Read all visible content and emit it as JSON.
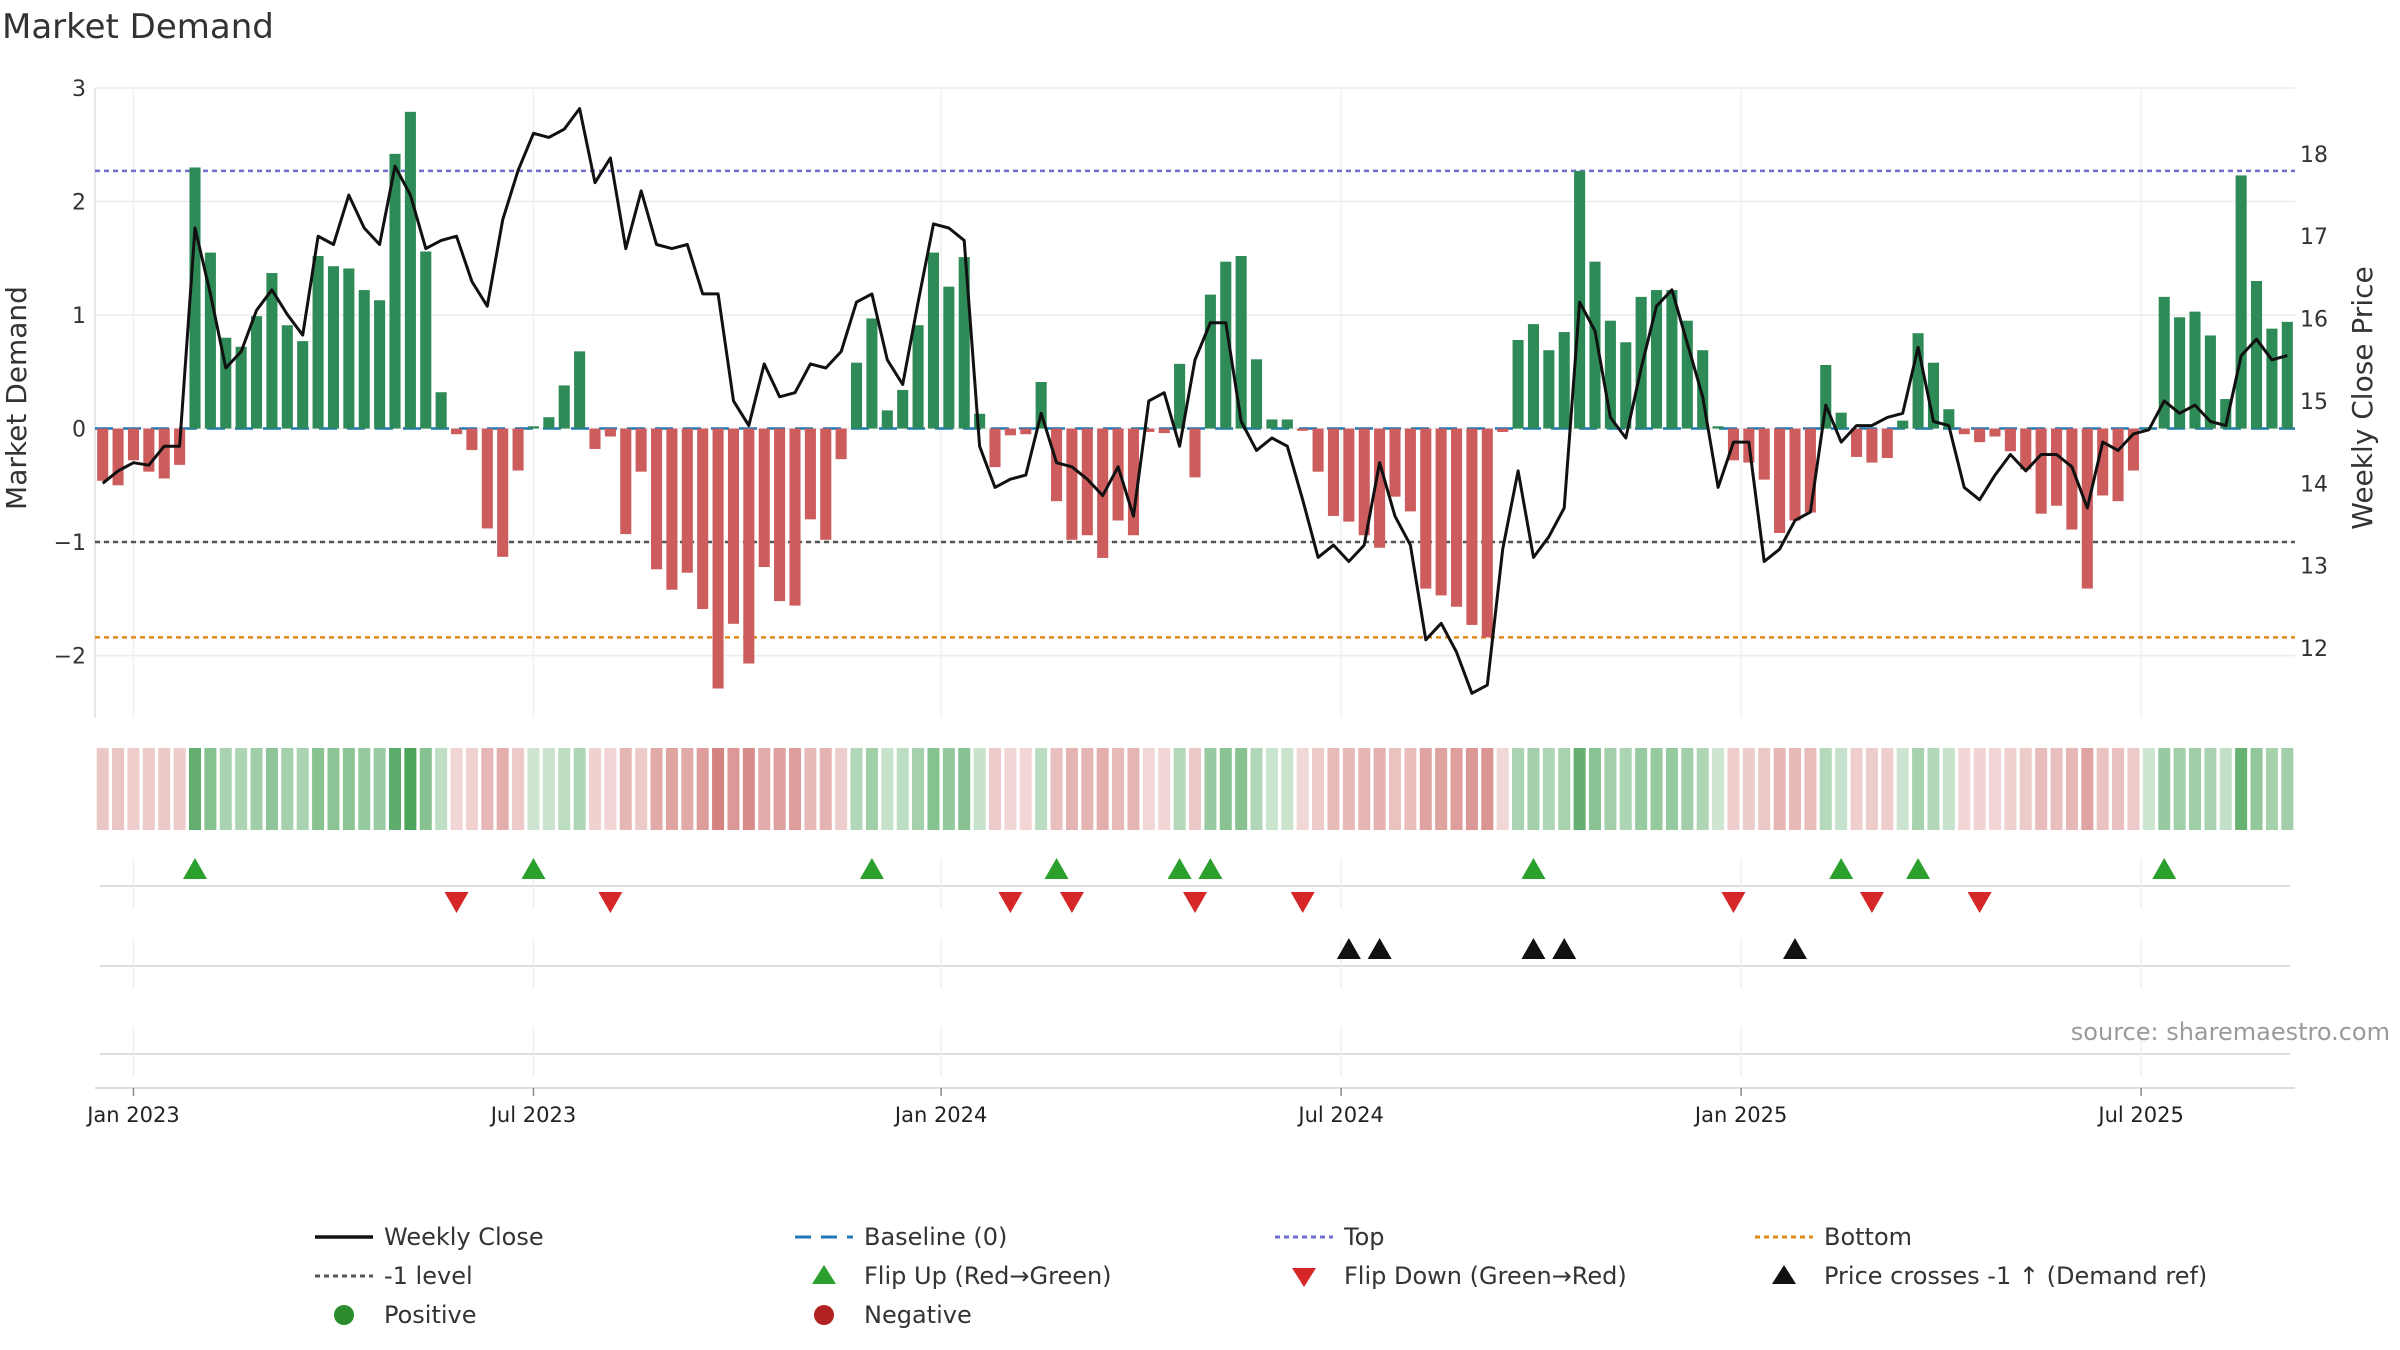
{
  "chart_data": {
    "type": "bar",
    "title": "Market Demand",
    "ylabel": "Market Demand",
    "y2label": "Weekly Close Price",
    "ylim": [
      -2.55,
      3.0
    ],
    "y2lim": [
      11.15,
      18.8
    ],
    "yticks": [
      {
        "v": 3,
        "label": "3"
      },
      {
        "v": 2,
        "label": "2"
      },
      {
        "v": 1,
        "label": "1"
      },
      {
        "v": 0,
        "label": "0"
      },
      {
        "v": -1,
        "label": "−1"
      },
      {
        "v": -2,
        "label": "−2"
      }
    ],
    "y2ticks": [
      {
        "v": 18,
        "label": "18"
      },
      {
        "v": 17,
        "label": "17"
      },
      {
        "v": 16,
        "label": "16"
      },
      {
        "v": 15,
        "label": "15"
      },
      {
        "v": 14,
        "label": "14"
      },
      {
        "v": 13,
        "label": "13"
      },
      {
        "v": 12,
        "label": "12"
      }
    ],
    "xticks": [
      {
        "week": 2,
        "label": "Jan 2023"
      },
      {
        "week": 28,
        "label": "Jul 2023"
      },
      {
        "week": 54.5,
        "label": "Jan 2024"
      },
      {
        "week": 80.5,
        "label": "Jul 2024"
      },
      {
        "week": 106.5,
        "label": "Jan 2025"
      },
      {
        "week": 132.5,
        "label": "Jul 2025"
      }
    ],
    "levels": {
      "top": 2.27,
      "minus_one": -1,
      "bottom": -1.84,
      "baseline": 0
    },
    "demand": [
      -0.46,
      -0.5,
      -0.28,
      -0.38,
      -0.44,
      -0.32,
      2.3,
      1.55,
      0.8,
      0.72,
      0.99,
      1.37,
      0.91,
      0.77,
      1.52,
      1.43,
      1.41,
      1.22,
      1.13,
      2.42,
      2.79,
      1.56,
      0.32,
      -0.05,
      -0.19,
      -0.88,
      -1.13,
      -0.37,
      0.02,
      0.1,
      0.38,
      0.68,
      -0.18,
      -0.07,
      -0.93,
      -0.38,
      -1.24,
      -1.42,
      -1.27,
      -1.59,
      -2.29,
      -1.72,
      -2.07,
      -1.22,
      -1.52,
      -1.56,
      -0.8,
      -0.98,
      -0.27,
      0.58,
      0.97,
      0.16,
      0.34,
      0.91,
      1.55,
      1.25,
      1.51,
      0.13,
      -0.34,
      -0.06,
      -0.05,
      0.41,
      -0.64,
      -0.98,
      -0.94,
      -1.14,
      -0.81,
      -0.94,
      -0.03,
      -0.04,
      0.57,
      -0.43,
      1.18,
      1.47,
      1.52,
      0.61,
      0.08,
      0.08,
      -0.02,
      -0.38,
      -0.77,
      -0.82,
      -0.94,
      -1.05,
      -0.6,
      -0.73,
      -1.41,
      -1.47,
      -1.57,
      -1.73,
      -1.84,
      -0.03,
      0.78,
      0.92,
      0.69,
      0.85,
      2.27,
      1.47,
      0.95,
      0.76,
      1.16,
      1.22,
      1.22,
      0.95,
      0.69,
      0.02,
      -0.28,
      -0.3,
      -0.45,
      -0.92,
      -0.81,
      -0.74,
      0.56,
      0.14,
      -0.25,
      -0.3,
      -0.26,
      0.07,
      0.84,
      0.58,
      0.17,
      -0.05,
      -0.12,
      -0.07,
      -0.2,
      -0.36,
      -0.75,
      -0.68,
      -0.89,
      -1.41,
      -0.59,
      -0.64,
      -0.37,
      0.01,
      1.16,
      0.98,
      1.03,
      0.82,
      0.26,
      2.23,
      1.3,
      0.88,
      0.94
    ],
    "weekly_close": [
      14.0,
      14.15,
      14.25,
      14.22,
      14.45,
      14.45,
      17.1,
      16.3,
      15.4,
      15.6,
      16.1,
      16.35,
      16.05,
      15.8,
      17.0,
      16.9,
      17.5,
      17.1,
      16.9,
      17.85,
      17.5,
      16.85,
      16.95,
      17.0,
      16.45,
      16.15,
      17.2,
      17.8,
      18.25,
      18.2,
      18.3,
      18.55,
      17.65,
      17.95,
      16.85,
      17.55,
      16.9,
      16.85,
      16.9,
      16.3,
      16.3,
      15.0,
      14.7,
      15.45,
      15.05,
      15.1,
      15.45,
      15.4,
      15.6,
      16.2,
      16.3,
      15.5,
      15.2,
      16.2,
      17.15,
      17.1,
      16.95,
      14.45,
      13.95,
      14.05,
      14.1,
      14.85,
      14.25,
      14.2,
      14.05,
      13.85,
      14.2,
      13.6,
      15.0,
      15.1,
      14.45,
      15.5,
      15.95,
      15.95,
      14.75,
      14.4,
      14.55,
      14.45,
      13.8,
      13.1,
      13.25,
      13.05,
      13.25,
      14.25,
      13.6,
      13.25,
      12.1,
      12.3,
      11.95,
      11.45,
      11.55,
      13.2,
      14.15,
      13.1,
      13.35,
      13.7,
      16.2,
      15.85,
      14.8,
      14.55,
      15.4,
      16.15,
      16.35,
      15.7,
      15.05,
      13.95,
      14.5,
      14.5,
      13.05,
      13.2,
      13.55,
      13.65,
      14.95,
      14.5,
      14.7,
      14.7,
      14.8,
      14.85,
      15.65,
      14.75,
      14.7,
      13.95,
      13.8,
      14.1,
      14.35,
      14.15,
      14.35,
      14.35,
      14.2,
      13.7,
      14.5,
      14.4,
      14.6,
      14.65,
      15.0,
      14.85,
      14.95,
      14.75,
      14.7,
      15.55,
      15.75,
      15.5,
      15.55
    ],
    "flip_up_weeks": [
      6,
      28,
      50,
      62,
      70,
      72,
      93,
      113,
      118,
      134
    ],
    "flip_down_weeks": [
      23,
      33,
      59,
      63,
      71,
      78,
      106,
      115,
      122
    ],
    "price_cross_weeks": [
      81,
      83,
      93,
      95,
      110
    ],
    "legend": [
      {
        "kind": "line",
        "label": "Weekly Close",
        "color": "#111111"
      },
      {
        "kind": "dashed",
        "label": "Baseline (0)",
        "color": "#1f77b4"
      },
      {
        "kind": "dotted",
        "label": "Top",
        "color": "#6f6fd0"
      },
      {
        "kind": "dotted",
        "label": "Bottom",
        "color": "#e08a18"
      },
      {
        "kind": "dotted",
        "label": "-1 level",
        "color": "#555555"
      },
      {
        "kind": "tri-up",
        "label": "Flip Up (Red→Green)",
        "color": "#2ca02c"
      },
      {
        "kind": "tri-down",
        "label": "Flip Down (Green→Red)",
        "color": "#d62728"
      },
      {
        "kind": "tri-up",
        "label": "Price crosses -1 ↑ (Demand ref)",
        "color": "#111111"
      },
      {
        "kind": "dot",
        "label": "Positive",
        "color": "#2a8c2a"
      },
      {
        "kind": "dot",
        "label": "Negative",
        "color": "#b22222"
      }
    ],
    "source": "source: sharemaestro.com",
    "colors": {
      "positive_bar": "#2e8b57",
      "negative_bar": "#cd5c5c",
      "line": "#111111",
      "baseline": "#1f77b4",
      "top": "#6f6fd0",
      "bottom": "#e08a18",
      "minus_one": "#555555",
      "flip_up": "#2ca02c",
      "flip_down": "#d62728",
      "cross": "#111111"
    }
  }
}
